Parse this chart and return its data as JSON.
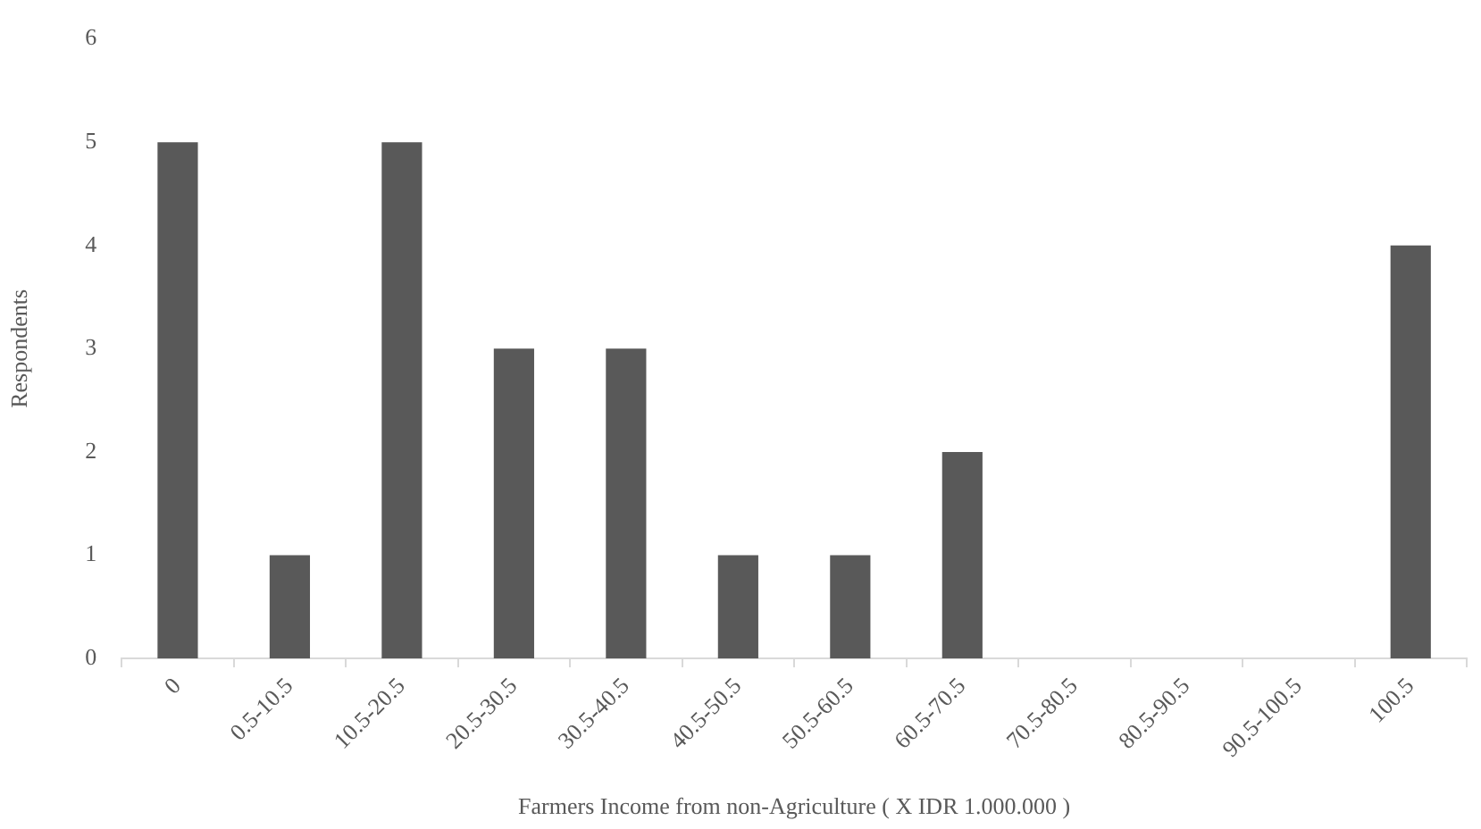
{
  "chart_data": {
    "type": "bar",
    "xlabel": "Farmers Income from non-Agriculture ( X IDR 1.000.000 )",
    "ylabel": "Respondents",
    "categories": [
      "0",
      "0.5-10.5",
      "10.5-20.5",
      "20.5-30.5",
      "30.5-40.5",
      "40.5-50.5",
      "50.5-60.5",
      "60.5-70.5",
      "70.5-80.5",
      "80.5-90.5",
      "90.5-100.5",
      "100.5"
    ],
    "values": [
      5,
      1,
      5,
      3,
      3,
      1,
      1,
      2,
      0,
      0,
      0,
      4
    ],
    "color": "#595959",
    "ylim": [
      0,
      6
    ],
    "yticks": [
      0,
      1,
      2,
      3,
      4,
      5,
      6
    ],
    "grid": false,
    "legend": false
  }
}
